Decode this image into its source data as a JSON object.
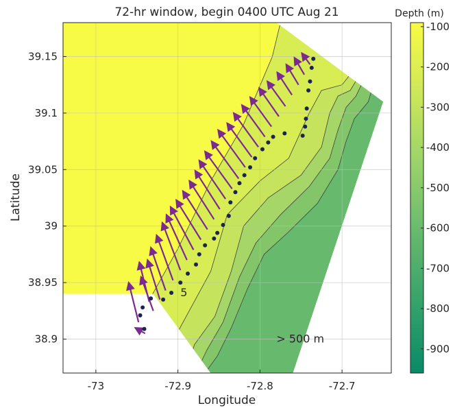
{
  "chart_data": {
    "type": "contour",
    "title": "72-hr window, begin 0400 UTC Aug 21",
    "xlabel": "Longitude",
    "ylabel": "Latitude",
    "xlim": [
      -73.04,
      -72.64
    ],
    "ylim": [
      38.87,
      39.18
    ],
    "xticks": [
      -73,
      -72.9,
      -72.8,
      -72.7
    ],
    "xtick_labels": [
      "-73",
      "-72.9",
      "-72.8",
      "-72.7"
    ],
    "yticks": [
      38.9,
      38.95,
      39.0,
      39.05,
      39.1,
      39.15
    ],
    "ytick_labels": [
      "38.9",
      "38.95",
      "39",
      "39.05",
      "39.1",
      "39.15"
    ],
    "grid": true,
    "colorbar": {
      "label": "Depth (m)",
      "range": [
        -960,
        -90
      ],
      "ticks": [
        -100,
        -200,
        -300,
        -400,
        -500,
        -600,
        -700,
        -800,
        -900
      ],
      "tick_labels": [
        "-100",
        "-200",
        "-300",
        "-400",
        "-500",
        "-600",
        "-700",
        "-800",
        "-900"
      ],
      "color_low": "#0a8a68",
      "color_high": "#f8fb45"
    },
    "depth_region": {
      "outline": [
        [
          -73.04,
          38.94
        ],
        [
          -72.93,
          38.94
        ],
        [
          -72.86,
          38.87
        ],
        [
          -72.76,
          38.87
        ],
        [
          -72.65,
          39.11
        ],
        [
          -72.78,
          39.18
        ],
        [
          -73.04,
          39.18
        ]
      ],
      "fills": [
        {
          "level": -100,
          "color": "#f8fb45",
          "path": [
            [
              -73.04,
              38.87
            ],
            [
              -72.64,
              38.87
            ],
            [
              -72.64,
              39.18
            ],
            [
              -73.04,
              39.18
            ]
          ]
        },
        {
          "level": -200,
          "color": "#d7ed53",
          "path": [
            [
              -72.95,
              38.915
            ],
            [
              -72.9,
              38.98
            ],
            [
              -72.86,
              39.04
            ],
            [
              -72.82,
              39.09
            ],
            [
              -72.785,
              39.15
            ],
            [
              -72.775,
              39.18
            ],
            [
              -72.64,
              39.18
            ],
            [
              -72.64,
              38.87
            ],
            [
              -72.94,
              38.87
            ]
          ]
        },
        {
          "level": -300,
          "color": "#c6e35e",
          "path": [
            [
              -72.912,
              38.87
            ],
            [
              -72.905,
              38.9
            ],
            [
              -72.86,
              38.96
            ],
            [
              -72.84,
              39.01
            ],
            [
              -72.8,
              39.04
            ],
            [
              -72.765,
              39.06
            ],
            [
              -72.74,
              39.1
            ],
            [
              -72.725,
              39.12
            ],
            [
              -72.7,
              39.125
            ],
            [
              -72.64,
              39.18
            ],
            [
              -72.64,
              38.87
            ]
          ]
        },
        {
          "level": -400,
          "color": "#a6d668",
          "path": [
            [
              -72.89,
              38.87
            ],
            [
              -72.88,
              38.895
            ],
            [
              -72.855,
              38.92
            ],
            [
              -72.835,
              38.96
            ],
            [
              -72.82,
              39.0
            ],
            [
              -72.79,
              39.025
            ],
            [
              -72.75,
              39.045
            ],
            [
              -72.725,
              39.07
            ],
            [
              -72.715,
              39.1
            ],
            [
              -72.705,
              39.115
            ],
            [
              -72.69,
              39.12
            ],
            [
              -72.64,
              39.18
            ],
            [
              -72.64,
              38.87
            ]
          ]
        },
        {
          "level": -500,
          "color": "#83c66a",
          "path": [
            [
              -72.878,
              38.87
            ],
            [
              -72.865,
              38.89
            ],
            [
              -72.845,
              38.915
            ],
            [
              -72.825,
              38.955
            ],
            [
              -72.805,
              38.985
            ],
            [
              -72.775,
              39.01
            ],
            [
              -72.74,
              39.035
            ],
            [
              -72.715,
              39.06
            ],
            [
              -72.705,
              39.085
            ],
            [
              -72.695,
              39.105
            ],
            [
              -72.683,
              39.115
            ],
            [
              -72.64,
              39.18
            ],
            [
              -72.64,
              38.87
            ]
          ]
        },
        {
          "level": -600,
          "color": "#67b96e",
          "path": [
            [
              -72.867,
              38.87
            ],
            [
              -72.852,
              38.885
            ],
            [
              -72.835,
              38.91
            ],
            [
              -72.815,
              38.945
            ],
            [
              -72.795,
              38.975
            ],
            [
              -72.765,
              38.995
            ],
            [
              -72.73,
              39.02
            ],
            [
              -72.705,
              39.05
            ],
            [
              -72.695,
              39.075
            ],
            [
              -72.685,
              39.095
            ],
            [
              -72.668,
              39.11
            ],
            [
              -72.64,
              39.18
            ],
            [
              -72.64,
              38.87
            ]
          ]
        }
      ]
    },
    "vectors": [
      {
        "x": -72.948,
        "y": 38.915,
        "u": -0.012,
        "v": 0.035
      },
      {
        "x": -72.94,
        "y": 38.905,
        "u": -0.012,
        "v": 0.005
      },
      {
        "x": -72.935,
        "y": 38.933,
        "u": -0.012,
        "v": 0.035
      },
      {
        "x": -72.93,
        "y": 38.925,
        "u": -0.015,
        "v": 0.03
      },
      {
        "x": -72.922,
        "y": 38.935,
        "u": -0.015,
        "v": 0.035
      },
      {
        "x": -72.915,
        "y": 38.943,
        "u": -0.018,
        "v": 0.038
      },
      {
        "x": -72.906,
        "y": 38.952,
        "u": -0.02,
        "v": 0.04
      },
      {
        "x": -72.897,
        "y": 38.961,
        "u": -0.022,
        "v": 0.042
      },
      {
        "x": -72.889,
        "y": 38.97,
        "u": -0.025,
        "v": 0.04
      },
      {
        "x": -72.881,
        "y": 38.979,
        "u": -0.028,
        "v": 0.038
      },
      {
        "x": -72.872,
        "y": 38.988,
        "u": -0.03,
        "v": 0.035
      },
      {
        "x": -72.864,
        "y": 38.997,
        "u": -0.03,
        "v": 0.034
      },
      {
        "x": -72.856,
        "y": 39.006,
        "u": -0.03,
        "v": 0.034
      },
      {
        "x": -72.849,
        "y": 39.015,
        "u": -0.03,
        "v": 0.034
      },
      {
        "x": -72.842,
        "y": 39.024,
        "u": -0.032,
        "v": 0.034
      },
      {
        "x": -72.834,
        "y": 39.033,
        "u": -0.033,
        "v": 0.033
      },
      {
        "x": -72.826,
        "y": 39.042,
        "u": -0.033,
        "v": 0.033
      },
      {
        "x": -72.818,
        "y": 39.052,
        "u": -0.033,
        "v": 0.033
      },
      {
        "x": -72.81,
        "y": 39.061,
        "u": -0.03,
        "v": 0.03
      },
      {
        "x": -72.802,
        "y": 39.07,
        "u": -0.03,
        "v": 0.03
      },
      {
        "x": -72.794,
        "y": 39.079,
        "u": -0.028,
        "v": 0.028
      },
      {
        "x": -72.786,
        "y": 39.088,
        "u": -0.026,
        "v": 0.026
      },
      {
        "x": -72.777,
        "y": 39.097,
        "u": -0.024,
        "v": 0.025
      },
      {
        "x": -72.769,
        "y": 39.106,
        "u": -0.022,
        "v": 0.022
      },
      {
        "x": -72.761,
        "y": 39.116,
        "u": -0.018,
        "v": 0.02
      },
      {
        "x": -72.753,
        "y": 39.125,
        "u": -0.015,
        "v": 0.018
      },
      {
        "x": -72.746,
        "y": 39.134,
        "u": -0.012,
        "v": 0.015
      },
      {
        "x": -72.739,
        "y": 39.143,
        "u": -0.01,
        "v": 0.01
      }
    ],
    "moorings": [
      {
        "x": -72.946,
        "y": 38.921
      },
      {
        "x": -72.943,
        "y": 38.928
      },
      {
        "x": -72.941,
        "y": 38.909
      },
      {
        "x": -72.933,
        "y": 38.936
      },
      {
        "x": -72.918,
        "y": 38.935
      },
      {
        "x": -72.908,
        "y": 38.941
      },
      {
        "x": -72.897,
        "y": 38.95
      },
      {
        "x": -72.888,
        "y": 38.958
      },
      {
        "x": -72.878,
        "y": 38.966
      },
      {
        "x": -72.874,
        "y": 38.975
      },
      {
        "x": -72.867,
        "y": 38.983
      },
      {
        "x": -72.856,
        "y": 38.989
      },
      {
        "x": -72.852,
        "y": 38.994
      },
      {
        "x": -72.845,
        "y": 39.001
      },
      {
        "x": -72.838,
        "y": 39.009
      },
      {
        "x": -72.836,
        "y": 39.021
      },
      {
        "x": -72.83,
        "y": 39.03
      },
      {
        "x": -72.825,
        "y": 39.038
      },
      {
        "x": -72.819,
        "y": 39.045
      },
      {
        "x": -72.812,
        "y": 39.052
      },
      {
        "x": -72.806,
        "y": 39.06
      },
      {
        "x": -72.797,
        "y": 39.068
      },
      {
        "x": -72.79,
        "y": 39.074
      },
      {
        "x": -72.784,
        "y": 39.079
      },
      {
        "x": -72.77,
        "y": 39.082
      },
      {
        "x": -72.748,
        "y": 39.08
      },
      {
        "x": -72.745,
        "y": 39.088
      },
      {
        "x": -72.744,
        "y": 39.095
      },
      {
        "x": -72.743,
        "y": 39.104
      },
      {
        "x": -72.741,
        "y": 39.12
      },
      {
        "x": -72.739,
        "y": 39.128
      },
      {
        "x": -72.737,
        "y": 39.14
      },
      {
        "x": -72.735,
        "y": 39.148
      }
    ],
    "annotations": [
      {
        "text": "5",
        "x": -72.897,
        "y": 38.938
      },
      {
        "text": "> 500 m",
        "x": -72.78,
        "y": 38.897
      }
    ]
  }
}
